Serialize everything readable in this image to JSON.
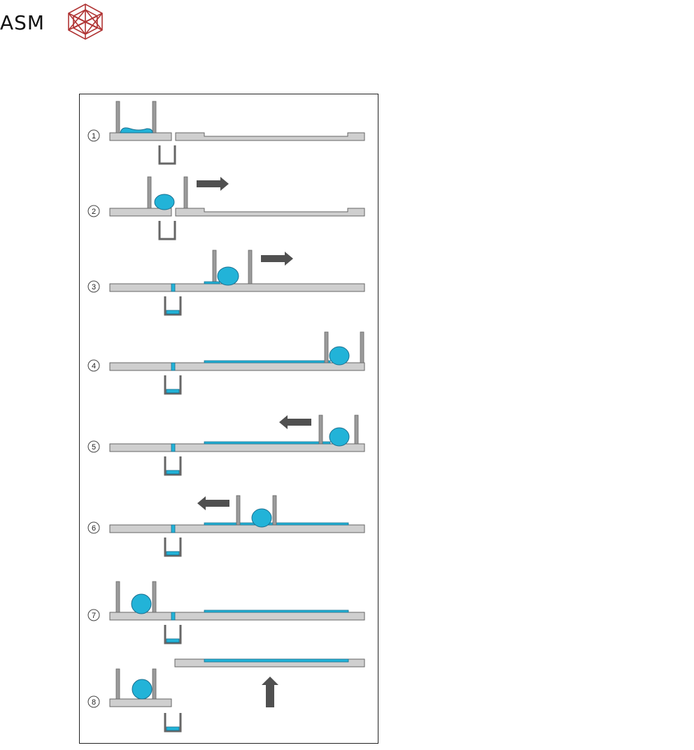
{
  "logo": {
    "text": "ASM",
    "mark_icon": "crystal-polyhedron-icon",
    "mark_color": "#b03434"
  },
  "colors": {
    "fluid": "#22b3d8",
    "fluid_stroke": "#1a6f8f",
    "plate": "#cfcfcf",
    "plate_stroke": "#666666",
    "blade": "#9b9b9b",
    "arrow": "#505050"
  },
  "steps": [
    {
      "label": "1",
      "arrow": "none"
    },
    {
      "label": "2",
      "arrow": "right"
    },
    {
      "label": "3",
      "arrow": "right"
    },
    {
      "label": "4",
      "arrow": "none"
    },
    {
      "label": "5",
      "arrow": "left"
    },
    {
      "label": "6",
      "arrow": "left"
    },
    {
      "label": "7",
      "arrow": "none"
    },
    {
      "label": "8",
      "arrow": "up"
    }
  ]
}
